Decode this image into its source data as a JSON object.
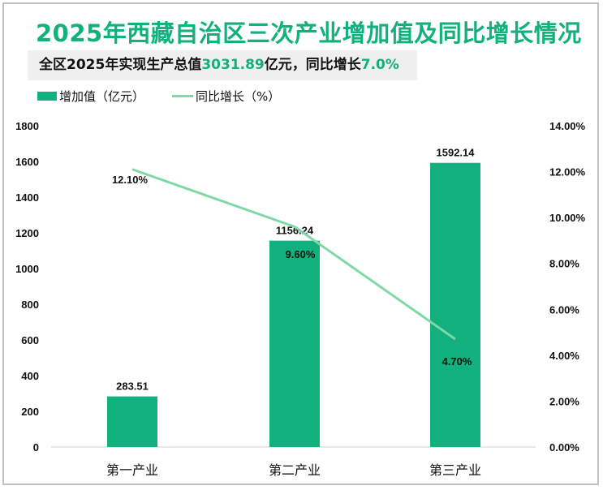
{
  "title": "2025年西藏自治区三次产业增加值及同比增长情况",
  "subtitle": {
    "prefix": "全区2025年实现生产总值",
    "gdp": "3031.89",
    "mid": "亿元，同比增长",
    "growth": "7.0%"
  },
  "legend": [
    {
      "label": "增加值（亿元）",
      "type": "bar"
    },
    {
      "label": "同比增长（%）",
      "type": "line"
    }
  ],
  "colors": {
    "bar": "#12b07d",
    "line": "#7fd8a6",
    "accent": "#12b07d"
  },
  "chart_data": {
    "type": "bar",
    "title": "2025年西藏自治区三次产业增加值及同比增长情况",
    "categories": [
      "第一产业",
      "第二产业",
      "第三产业"
    ],
    "series": [
      {
        "name": "增加值（亿元）",
        "type": "bar",
        "axis": "left",
        "values": [
          283.51,
          1156.24,
          1592.14
        ],
        "labels": [
          "283.51",
          "1156.24",
          "1592.14"
        ]
      },
      {
        "name": "同比增长（%）",
        "type": "line",
        "axis": "right",
        "values": [
          12.1,
          9.6,
          4.7
        ],
        "labels": [
          "12.10%",
          "9.60%",
          "4.70%"
        ]
      }
    ],
    "left_axis": {
      "ylim": [
        0,
        1800
      ],
      "ticks": [
        "0",
        "200",
        "400",
        "600",
        "800",
        "1000",
        "1200",
        "1400",
        "1600",
        "1800"
      ]
    },
    "right_axis": {
      "ylim": [
        0,
        14
      ],
      "ticks": [
        "0.00%",
        "2.00%",
        "4.00%",
        "6.00%",
        "8.00%",
        "10.00%",
        "12.00%",
        "14.00%"
      ]
    },
    "legend_position": "top-left",
    "grid": false
  }
}
